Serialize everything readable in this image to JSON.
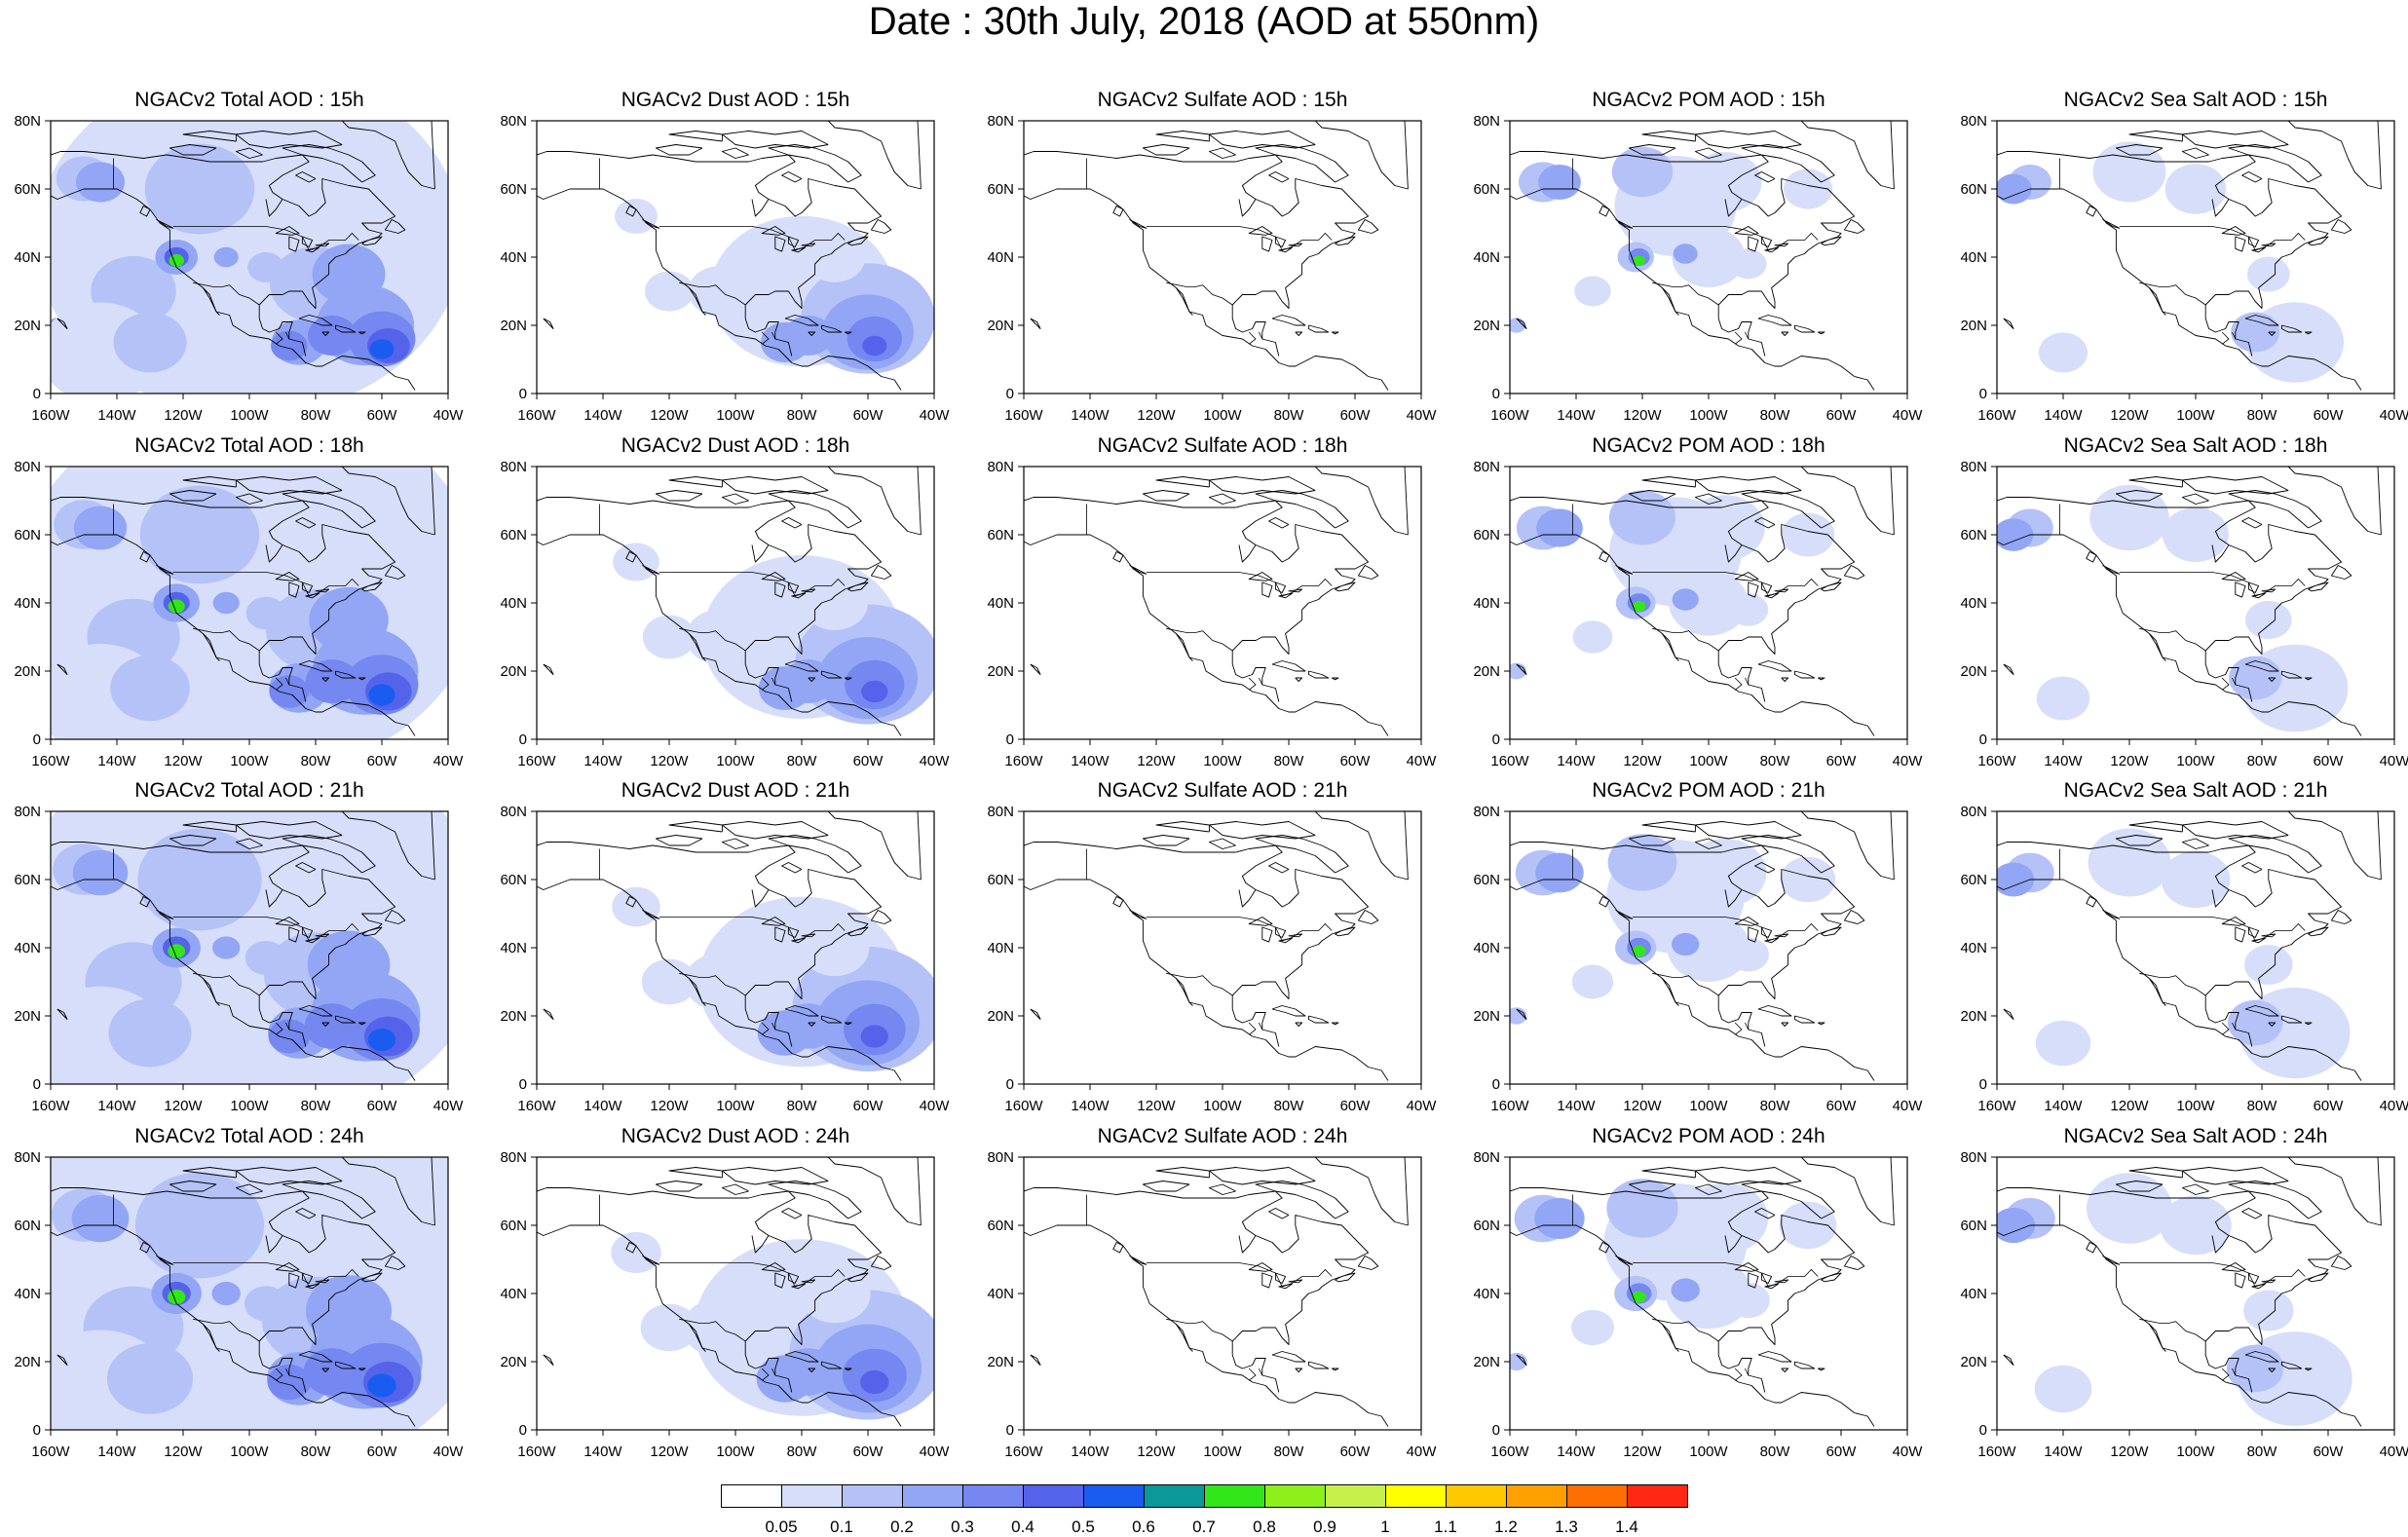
{
  "title": "Date : 30th July, 2018 (AOD at 550nm)",
  "axes": {
    "x_ticks": [
      "160W",
      "140W",
      "120W",
      "100W",
      "80W",
      "60W",
      "40W"
    ],
    "y_ticks": [
      "0",
      "20N",
      "40N",
      "60N",
      "80N"
    ],
    "lon_range": [
      -160,
      -40
    ],
    "lat_range": [
      0,
      80
    ]
  },
  "panel_titles": [
    [
      "NGACv2 Total AOD : 15h",
      "NGACv2 Dust AOD : 15h",
      "NGACv2 Sulfate AOD : 15h",
      "NGACv2 POM AOD : 15h",
      "NGACv2 Sea Salt AOD : 15h"
    ],
    [
      "NGACv2 Total AOD : 18h",
      "NGACv2 Dust AOD : 18h",
      "NGACv2 Sulfate AOD : 18h",
      "NGACv2 POM AOD : 18h",
      "NGACv2 Sea Salt AOD : 18h"
    ],
    [
      "NGACv2 Total AOD : 21h",
      "NGACv2 Dust AOD : 21h",
      "NGACv2 Sulfate AOD : 21h",
      "NGACv2 POM AOD : 21h",
      "NGACv2 Sea Salt AOD : 21h"
    ],
    [
      "NGACv2 Total AOD : 24h",
      "NGACv2 Dust AOD : 24h",
      "NGACv2 Sulfate AOD : 24h",
      "NGACv2 POM AOD : 24h",
      "NGACv2 Sea Salt  AOD : 24h"
    ]
  ],
  "colorbar": {
    "labels": [
      "0.05",
      "0.1",
      "0.2",
      "0.3",
      "0.4",
      "0.5",
      "0.6",
      "0.7",
      "0.8",
      "0.9",
      "1",
      "1.1",
      "1.2",
      "1.3",
      "1.4"
    ],
    "colors": [
      "#ffffff",
      "#d6defa",
      "#b4c2f8",
      "#92a6f5",
      "#7587f0",
      "#5563eb",
      "#1a5cf0",
      "#0a9898",
      "#33e61a",
      "#8cf01a",
      "#c8f04b",
      "#ffff00",
      "#ffc800",
      "#ffa000",
      "#ff6e00",
      "#ff2814"
    ]
  }
}
